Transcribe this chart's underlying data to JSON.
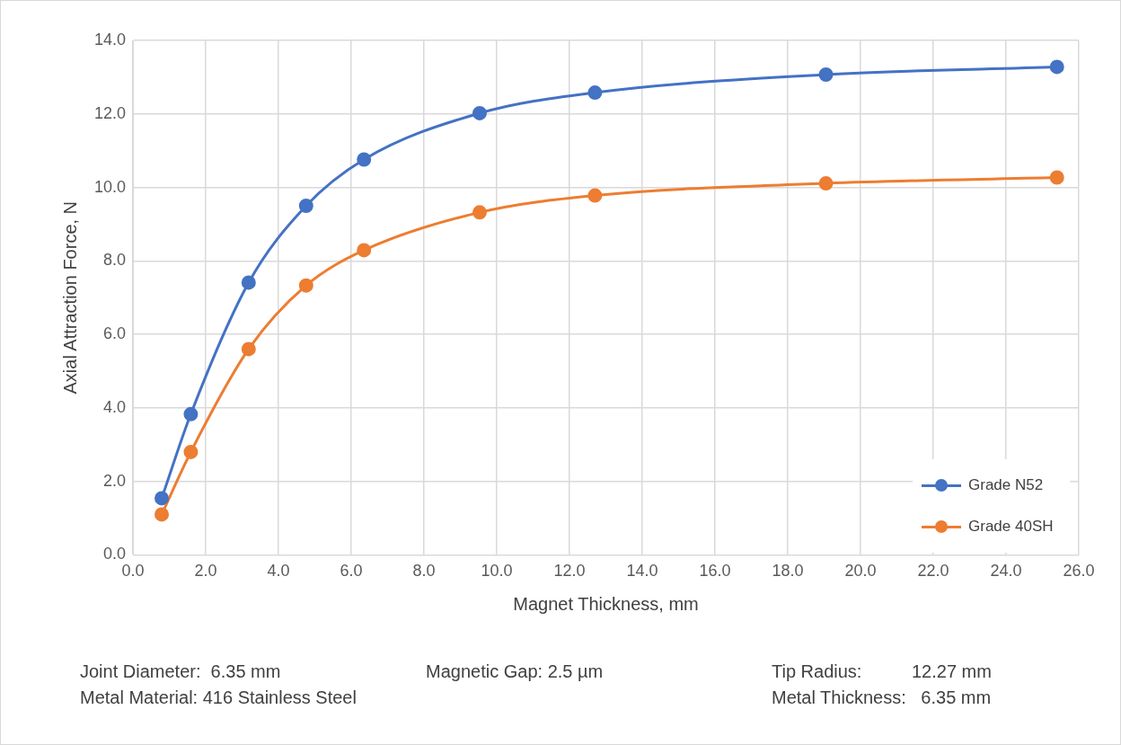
{
  "chart_data": {
    "type": "line",
    "xlabel": "Magnet Thickness, mm",
    "ylabel": "Axial Attraction Force, N",
    "x": [
      0.79,
      1.59,
      3.18,
      4.76,
      6.35,
      9.53,
      12.7,
      19.05,
      25.4
    ],
    "series": [
      {
        "name": "Grade N52",
        "color": "#4472c4",
        "values": [
          1.54,
          3.83,
          7.41,
          9.5,
          10.76,
          12.02,
          12.58,
          13.07,
          13.28
        ]
      },
      {
        "name": "Grade 40SH",
        "color": "#ed7d31",
        "values": [
          1.1,
          2.8,
          5.6,
          7.33,
          8.29,
          9.32,
          9.78,
          10.11,
          10.27
        ]
      }
    ],
    "xlim": [
      0,
      26
    ],
    "xticks": [
      {
        "value": 0,
        "label": "0.0"
      },
      {
        "value": 2,
        "label": "2.0"
      },
      {
        "value": 4,
        "label": "4.0"
      },
      {
        "value": 6,
        "label": "6.0"
      },
      {
        "value": 8,
        "label": "8.0"
      },
      {
        "value": 10,
        "label": "10.0"
      },
      {
        "value": 12,
        "label": "12.0"
      },
      {
        "value": 14,
        "label": "14.0"
      },
      {
        "value": 16,
        "label": "16.0"
      },
      {
        "value": 18,
        "label": "18.0"
      },
      {
        "value": 20,
        "label": "20.0"
      },
      {
        "value": 22,
        "label": "22.0"
      },
      {
        "value": 24,
        "label": "24.0"
      },
      {
        "value": 26,
        "label": "26.0"
      }
    ],
    "ylim": [
      0,
      14
    ],
    "yticks": [
      {
        "value": 0,
        "label": "0.0"
      },
      {
        "value": 2,
        "label": "2.0"
      },
      {
        "value": 4,
        "label": "4.0"
      },
      {
        "value": 6,
        "label": "6.0"
      },
      {
        "value": 8,
        "label": "8.0"
      },
      {
        "value": 10,
        "label": "10.0"
      },
      {
        "value": 12,
        "label": "12.0"
      },
      {
        "value": 14,
        "label": "14.0"
      }
    ],
    "grid": true,
    "legend": "bottom right",
    "marker": "circle",
    "line_style": "solid",
    "annotations": [
      "Joint Diameter:  6.35 mm",
      "Magnetic Gap: 2.5 µm",
      "Tip Radius:          12.27 mm",
      "Metal Material: 416 Stainless Steel",
      "Metal Thickness:   6.35 mm"
    ]
  }
}
